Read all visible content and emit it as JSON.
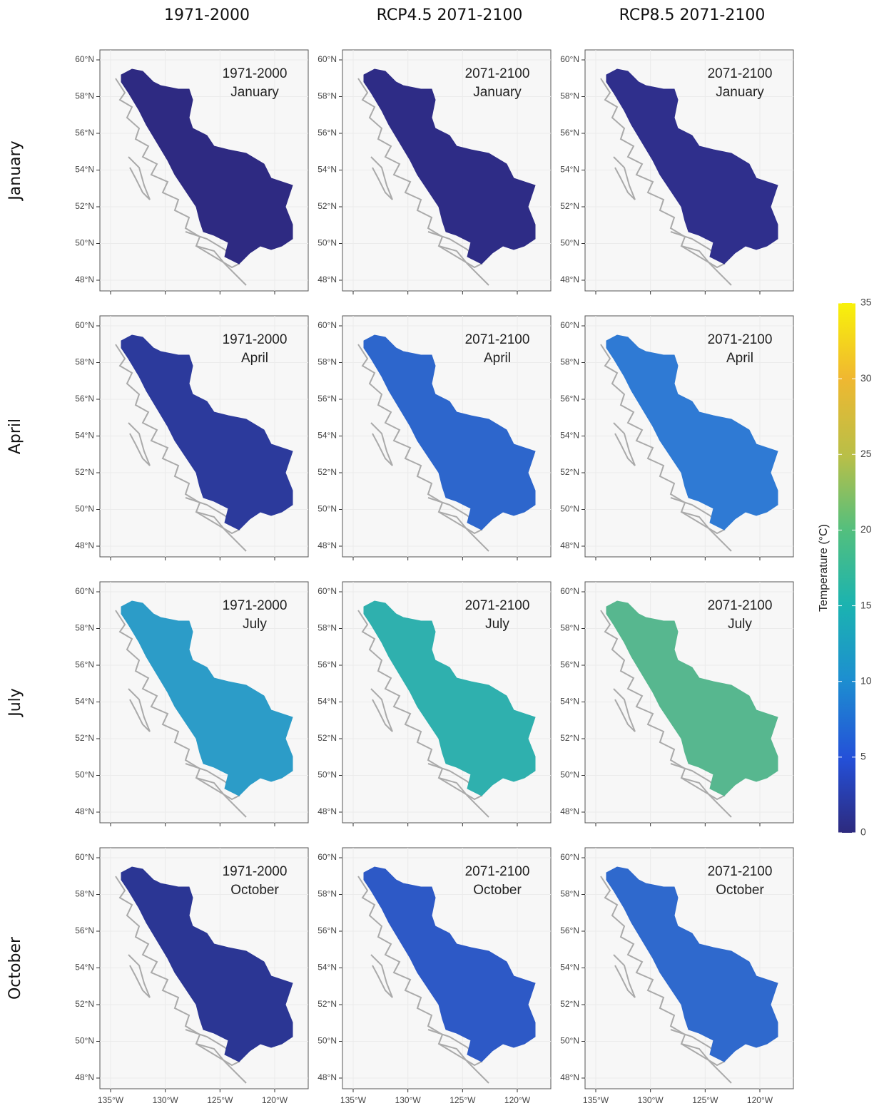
{
  "columns": [
    "1971-2000",
    "RCP4.5 2071-2100",
    "RCP8.5 2071-2100"
  ],
  "rows": [
    "January",
    "April",
    "July",
    "October"
  ],
  "panels": [
    {
      "period": "1971-2000",
      "month": "January",
      "color": "#2e2a82"
    },
    {
      "period": "2071-2100",
      "month": "January",
      "color": "#2e2c86"
    },
    {
      "period": "2071-2100",
      "month": "January",
      "color": "#2f2f8c"
    },
    {
      "period": "1971-2000",
      "month": "April",
      "color": "#2c3a9c"
    },
    {
      "period": "2071-2100",
      "month": "April",
      "color": "#2d66cc"
    },
    {
      "period": "2071-2100",
      "month": "April",
      "color": "#2f7ad4"
    },
    {
      "period": "1971-2000",
      "month": "July",
      "color": "#2c9cc8"
    },
    {
      "period": "2071-2100",
      "month": "July",
      "color": "#2fb0ae"
    },
    {
      "period": "2071-2100",
      "month": "July",
      "color": "#57b78f"
    },
    {
      "period": "1971-2000",
      "month": "October",
      "color": "#2b3694"
    },
    {
      "period": "2071-2100",
      "month": "October",
      "color": "#2d59c6"
    },
    {
      "period": "2071-2100",
      "month": "October",
      "color": "#2f69cd"
    }
  ],
  "yticks": [
    {
      "value": 60,
      "label": "60°N"
    },
    {
      "value": 58,
      "label": "58°N"
    },
    {
      "value": 56,
      "label": "56°N"
    },
    {
      "value": 54,
      "label": "54°N"
    },
    {
      "value": 52,
      "label": "52°N"
    },
    {
      "value": 50,
      "label": "50°N"
    },
    {
      "value": 48,
      "label": "48°N"
    }
  ],
  "xticks": [
    {
      "value": -135,
      "label": "135°W"
    },
    {
      "value": -130,
      "label": "130°W"
    },
    {
      "value": -125,
      "label": "125°W"
    },
    {
      "value": -120,
      "label": "120°W"
    }
  ],
  "colorbar": {
    "title": "Temperature (°C)",
    "ticks": [
      0,
      5,
      10,
      15,
      20,
      25,
      30,
      35
    ]
  }
}
